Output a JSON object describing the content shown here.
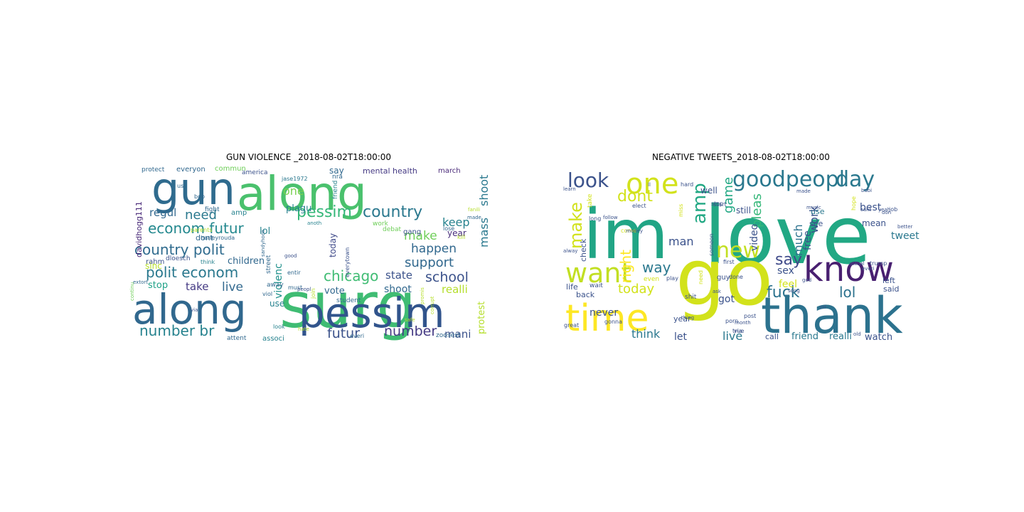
{
  "panels": [
    {
      "title": "GUN VIOLENCE _2018-08-02T18:00:00",
      "words": [
        {
          "text": "gun",
          "color": "#2f6b8e"
        },
        {
          "text": "surg",
          "color": "#3fbc73"
        },
        {
          "text": "along",
          "color": "#4ac16d"
        },
        {
          "text": "along",
          "color": "#31688e"
        },
        {
          "text": "pessim",
          "color": "#31548c"
        },
        {
          "text": "country polit",
          "color": "#2f6b8e"
        },
        {
          "text": "polit econom",
          "color": "#2a788e"
        },
        {
          "text": "econom futur",
          "color": "#23888e"
        },
        {
          "text": "pessim",
          "color": "#35b779"
        },
        {
          "text": "country",
          "color": "#2a788e"
        },
        {
          "text": "chicago",
          "color": "#3fbc73"
        },
        {
          "text": "school",
          "color": "#3b528b"
        },
        {
          "text": "support",
          "color": "#31688e"
        },
        {
          "text": "number br",
          "color": "#26828e"
        },
        {
          "text": "futur",
          "color": "#3b528b"
        },
        {
          "text": "number",
          "color": "#443983"
        },
        {
          "text": "mass",
          "color": "#2a788e"
        },
        {
          "text": "shoot",
          "color": "#2a788e"
        },
        {
          "text": "happen",
          "color": "#31688e"
        },
        {
          "text": "make",
          "color": "#6ece58"
        },
        {
          "text": "keep",
          "color": "#26828e"
        },
        {
          "text": "need",
          "color": "#2a788e"
        },
        {
          "text": "live",
          "color": "#31688e"
        },
        {
          "text": "take",
          "color": "#443983"
        },
        {
          "text": "state",
          "color": "#3b528b"
        },
        {
          "text": "shoot",
          "color": "#31688e"
        },
        {
          "text": "one",
          "color": "#7ad151"
        },
        {
          "text": "plagu",
          "color": "#26828e"
        },
        {
          "text": "regul",
          "color": "#31688e"
        },
        {
          "text": "mani",
          "color": "#3b528b"
        },
        {
          "text": "realli",
          "color": "#b5de2b"
        },
        {
          "text": "violenc",
          "color": "#21918c"
        },
        {
          "text": "protest",
          "color": "#b5de2b"
        },
        {
          "text": "children",
          "color": "#31688e"
        },
        {
          "text": "davidhogg111",
          "color": "#482878"
        },
        {
          "text": "today",
          "color": "#3e4989"
        },
        {
          "text": "vote",
          "color": "#31688e"
        },
        {
          "text": "use",
          "color": "#26828e"
        },
        {
          "text": "year",
          "color": "#472d7b"
        },
        {
          "text": "stop",
          "color": "#1fa187"
        },
        {
          "text": "lol",
          "color": "#26828e"
        },
        {
          "text": "dont",
          "color": "#31688e"
        },
        {
          "text": "say",
          "color": "#31688e"
        },
        {
          "text": "sinc",
          "color": "#b5de2b"
        },
        {
          "text": "rahm",
          "color": "#3b528b"
        },
        {
          "text": "amp",
          "color": "#26828e"
        },
        {
          "text": "mental health",
          "color": "#443983"
        },
        {
          "text": "march",
          "color": "#482878"
        },
        {
          "text": "protect",
          "color": "#31688e"
        },
        {
          "text": "everyon",
          "color": "#31688e"
        },
        {
          "text": "commun",
          "color": "#6ece58"
        },
        {
          "text": "america",
          "color": "#3b528b"
        },
        {
          "text": "nra",
          "color": "#31688e"
        },
        {
          "text": "jase1972",
          "color": "#2a788e"
        },
        {
          "text": "dloesch",
          "color": "#3b528b"
        },
        {
          "text": "fight",
          "color": "#31688e"
        },
        {
          "text": "street",
          "color": "#31688e"
        },
        {
          "text": "away",
          "color": "#31688e"
        },
        {
          "text": "student",
          "color": "#31688e"
        },
        {
          "text": "gang",
          "color": "#3b528b"
        },
        {
          "text": "work",
          "color": "#6ece58"
        },
        {
          "text": "debat",
          "color": "#6ece58"
        },
        {
          "text": "attent",
          "color": "#31688e"
        },
        {
          "text": "associ",
          "color": "#26828e"
        },
        {
          "text": "everi",
          "color": "#31688e"
        },
        {
          "text": "zoosest",
          "color": "#31688e"
        },
        {
          "text": "kill",
          "color": "#b5de2b"
        },
        {
          "text": "lose",
          "color": "#31688e"
        },
        {
          "text": "made",
          "color": "#31688e"
        },
        {
          "text": "fanili",
          "color": "#b5de2b"
        },
        {
          "text": "everytown",
          "color": "#3b528b"
        },
        {
          "text": "friend",
          "color": "#26828e"
        },
        {
          "text": "join",
          "color": "#b5de2b"
        },
        {
          "text": "must",
          "color": "#31688e"
        },
        {
          "text": "viol",
          "color": "#31688e"
        },
        {
          "text": "look",
          "color": "#26828e"
        },
        {
          "text": "us",
          "color": "#31688e"
        },
        {
          "text": "bob",
          "color": "#31688e"
        },
        {
          "text": "via",
          "color": "#3b528b"
        },
        {
          "text": "extort",
          "color": "#31688e"
        },
        {
          "text": "continu",
          "color": "#6ece58"
        },
        {
          "text": "peopl",
          "color": "#3b528b"
        },
        {
          "text": "harleyrouda",
          "color": "#31688e"
        },
        {
          "text": "sandyhook",
          "color": "#31688e"
        },
        {
          "text": "corrupt",
          "color": "#b5de2b"
        },
        {
          "text": "promis",
          "color": "#b5de2b"
        },
        {
          "text": "entir",
          "color": "#31688e"
        },
        {
          "text": "think",
          "color": "#26828e"
        },
        {
          "text": "parents",
          "color": "#b5de2b"
        },
        {
          "text": "safe",
          "color": "#b5de2b"
        },
        {
          "text": "hate",
          "color": "#b5de2b"
        },
        {
          "text": "anoth",
          "color": "#26828e"
        },
        {
          "text": "good",
          "color": "#3b528b"
        }
      ]
    },
    {
      "title": "NEGATIVE TWEETS_2018-08-02T18:00:00",
      "words": [
        {
          "text": "love",
          "color": "#22a884"
        },
        {
          "text": "im",
          "color": "#21a585"
        },
        {
          "text": "go",
          "color": "#d2e21b"
        },
        {
          "text": "thank",
          "color": "#2c728e"
        },
        {
          "text": "know",
          "color": "#481f70"
        },
        {
          "text": "time",
          "color": "#fde725"
        },
        {
          "text": "want",
          "color": "#c2df23"
        },
        {
          "text": "one",
          "color": "#d2e21b"
        },
        {
          "text": "goodpeopl",
          "color": "#2a788e"
        },
        {
          "text": "day",
          "color": "#2a788e"
        },
        {
          "text": "look",
          "color": "#3b528b"
        },
        {
          "text": "new",
          "color": "#c2df23"
        },
        {
          "text": "amp",
          "color": "#22a884"
        },
        {
          "text": "make",
          "color": "#d2e21b"
        },
        {
          "text": "dont",
          "color": "#d2e21b"
        },
        {
          "text": "say",
          "color": "#3e4989"
        },
        {
          "text": "fuck",
          "color": "#2c728e"
        },
        {
          "text": "lol",
          "color": "#2c728e"
        },
        {
          "text": "way",
          "color": "#2a788e"
        },
        {
          "text": "right",
          "color": "#fde725"
        },
        {
          "text": "today",
          "color": "#d2e21b"
        },
        {
          "text": "man",
          "color": "#3b528b"
        },
        {
          "text": "game",
          "color": "#22a884"
        },
        {
          "text": "pleas",
          "color": "#35b779"
        },
        {
          "text": "much",
          "color": "#2c728e"
        },
        {
          "text": "work",
          "color": "#3b528b"
        },
        {
          "text": "free",
          "color": "#3b528b"
        },
        {
          "text": "sex",
          "color": "#3b528b"
        },
        {
          "text": "feel",
          "color": "#d2e21b"
        },
        {
          "text": "tweet",
          "color": "#2a788e"
        },
        {
          "text": "best",
          "color": "#3b528b"
        },
        {
          "text": "mean",
          "color": "#3b528b"
        },
        {
          "text": "still",
          "color": "#3b528b"
        },
        {
          "text": "well",
          "color": "#3b528b"
        },
        {
          "text": "never",
          "color": "#3b528b"
        },
        {
          "text": "think",
          "color": "#2a788e"
        },
        {
          "text": "let",
          "color": "#3b528b"
        },
        {
          "text": "live",
          "color": "#2a788e"
        },
        {
          "text": "got",
          "color": "#3b528b"
        },
        {
          "text": "video",
          "color": "#3b528b"
        },
        {
          "text": "realli",
          "color": "#2a788e"
        },
        {
          "text": "watch",
          "color": "#3b528b"
        },
        {
          "text": "friend",
          "color": "#2a788e"
        },
        {
          "text": "call",
          "color": "#3b528b"
        },
        {
          "text": "year",
          "color": "#3b528b"
        },
        {
          "text": "life",
          "color": "#3b528b"
        },
        {
          "text": "back",
          "color": "#3b528b"
        },
        {
          "text": "check",
          "color": "#3b528b"
        },
        {
          "text": "use",
          "color": "#2a788e"
        },
        {
          "text": "see",
          "color": "#3b528b"
        },
        {
          "text": "said",
          "color": "#3b528b"
        },
        {
          "text": "left",
          "color": "#3b528b"
        },
        {
          "text": "guy",
          "color": "#3b528b"
        },
        {
          "text": "need",
          "color": "#d2e21b"
        },
        {
          "text": "someon",
          "color": "#3b528b"
        },
        {
          "text": "even",
          "color": "#d2e21b"
        },
        {
          "text": "take",
          "color": "#d2e21b"
        },
        {
          "text": "great",
          "color": "#3b528b"
        },
        {
          "text": "gonna",
          "color": "#3b528b"
        },
        {
          "text": "first",
          "color": "#3b528b"
        },
        {
          "text": "done",
          "color": "#3b528b"
        },
        {
          "text": "stop",
          "color": "#3b528b"
        },
        {
          "text": "start",
          "color": "#3b528b"
        },
        {
          "text": "miss",
          "color": "#d2e21b"
        },
        {
          "text": "play",
          "color": "#3b528b"
        },
        {
          "text": "shit",
          "color": "#3b528b"
        },
        {
          "text": "porn",
          "color": "#3b528b"
        },
        {
          "text": "hard",
          "color": "#3b528b"
        },
        {
          "text": "trump",
          "color": "#3b528b"
        },
        {
          "text": "job",
          "color": "#3b528b"
        },
        {
          "text": "hope",
          "color": "#d2e21b"
        },
        {
          "text": "via",
          "color": "#3b528b"
        },
        {
          "text": "true",
          "color": "#3b528b"
        },
        {
          "text": "post",
          "color": "#3b528b"
        },
        {
          "text": "wait",
          "color": "#3b528b"
        },
        {
          "text": "come",
          "color": "#d2e21b"
        },
        {
          "text": "ll",
          "color": "#3b528b"
        },
        {
          "text": "elect",
          "color": "#3b528b"
        },
        {
          "text": "long",
          "color": "#3b528b"
        },
        {
          "text": "follow",
          "color": "#3b528b"
        },
        {
          "text": "alway",
          "color": "#3b528b"
        },
        {
          "text": "learn",
          "color": "#3b528b"
        },
        {
          "text": "money",
          "color": "#3b528b"
        },
        {
          "text": "thing",
          "color": "#3b528b"
        },
        {
          "text": "month",
          "color": "#3b528b"
        },
        {
          "text": "song",
          "color": "#3b528b"
        },
        {
          "text": "god",
          "color": "#3b528b"
        },
        {
          "text": "old",
          "color": "#3b528b"
        },
        {
          "text": "cant",
          "color": "#3b528b"
        },
        {
          "text": "yeah",
          "color": "#3b528b"
        },
        {
          "text": "babi",
          "color": "#3b528b"
        },
        {
          "text": "actual",
          "color": "#3b528b"
        },
        {
          "text": "everi",
          "color": "#3b528b"
        },
        {
          "text": "cri",
          "color": "#3b528b"
        },
        {
          "text": "better",
          "color": "#3b528b"
        },
        {
          "text": "don",
          "color": "#3b528b"
        },
        {
          "text": "music",
          "color": "#3b528b"
        },
        {
          "text": "ask",
          "color": "#3b528b"
        },
        {
          "text": "made",
          "color": "#3b528b"
        }
      ]
    }
  ]
}
